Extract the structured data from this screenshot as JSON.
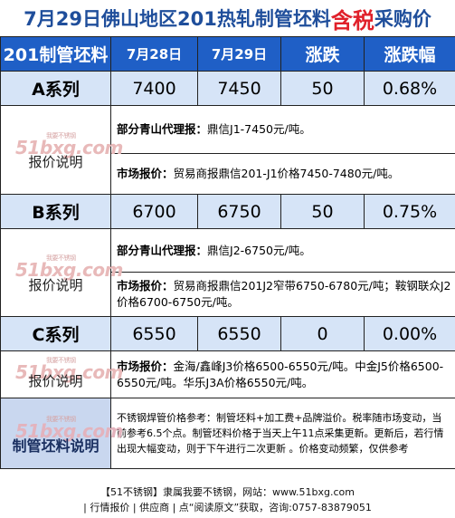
{
  "title": {
    "prefix": "7月29日佛山地区201热轧制管坯料",
    "highlight": "含税",
    "suffix": "采购价"
  },
  "header": {
    "name": "201制管坯料",
    "date1": "7月28日",
    "date2": "7月29日",
    "change": "涨跌",
    "change_pct": "涨跌幅"
  },
  "rows": [
    {
      "name": "A系列",
      "d1": "7400",
      "d2": "7450",
      "chg": "50",
      "pct": "0.68%",
      "note_label": "报价说明",
      "note1_key": "部分青山代理报：",
      "note1_val": "鼎信J1-7450元/吨。",
      "note2_key": "市场报价：",
      "note2_val": "贸易商报鼎信201-J1价格7450-7480元/吨。"
    },
    {
      "name": "B系列",
      "d1": "6700",
      "d2": "6750",
      "chg": "50",
      "pct": "0.75%",
      "note_label": "报价说明",
      "note1_key": "部分青山代理报：",
      "note1_val": "鼎信J2-6750元/吨。",
      "note2_key": "市场报价：",
      "note2_val": "贸易商报鼎信201J2窄带6750-6780元/吨；鞍钢联众J2价格6700-6750元/吨。"
    },
    {
      "name": "C系列",
      "d1": "6550",
      "d2": "6550",
      "chg": "0",
      "pct": "0.00%",
      "note_label": "报价说明",
      "note1_key": "市场报价：",
      "note1_val": "金海/鑫峰J3价格6500-6550元/吨。中金J5价格6500-6550元/吨。华乐J3A价格6550元/吨。"
    }
  ],
  "footer": {
    "label": "制管坯料说明",
    "text": "不锈钢焊管价格参考：制管坯料+加工费+品牌溢价。税率随市场变动，当前参考6.5个点。制管坯料价格于当天上午11点采集更新。更新后，若行情出现大幅变动，则于下午进行二次更新 。价格变动频繁，仅供参考"
  },
  "watermark": {
    "text": "51bxg.com",
    "small": "我要不锈钢"
  },
  "bottom": {
    "line1": "【51不锈钢】隶属我要不锈钢，网站：www.51bxg.com",
    "line2": "| 行情报价 | 供应商 | 点“阅读原文”获取，咨询:0757-83879051"
  }
}
